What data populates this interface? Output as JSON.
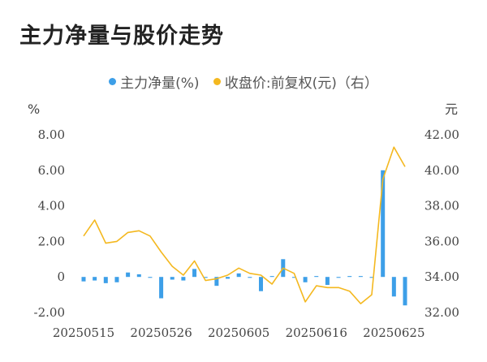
{
  "page": {
    "title": "主力净量与股价走势"
  },
  "chart_data": {
    "type": "bar",
    "title": "",
    "left_unit": "%",
    "right_unit": "元",
    "grid": false,
    "legend_position": "top-center",
    "x_tick_labels": [
      "20250515",
      "20250526",
      "20250605",
      "20250616",
      "20250625"
    ],
    "x_tick_indices": [
      0,
      7,
      14,
      21,
      28
    ],
    "y_left": {
      "min": -2,
      "max": 8,
      "ticks": [
        "-2.00",
        "0",
        "2.00",
        "4.00",
        "6.00",
        "8.00"
      ],
      "tick_values": [
        -2,
        0,
        2,
        4,
        6,
        8
      ]
    },
    "y_right": {
      "min": 32,
      "max": 42,
      "ticks": [
        "32.00",
        "34.00",
        "36.00",
        "38.00",
        "40.00",
        "42.00"
      ],
      "tick_values": [
        32,
        34,
        36,
        38,
        40,
        42
      ]
    },
    "series": [
      {
        "name": "主力净量(%)",
        "type": "bar",
        "axis": "left",
        "color": "#3d9fe8",
        "values": [
          -0.25,
          -0.2,
          -0.35,
          -0.3,
          0.25,
          0.15,
          -0.05,
          -1.2,
          -0.15,
          -0.2,
          0.45,
          -0.05,
          -0.5,
          -0.1,
          0.2,
          -0.05,
          -0.8,
          0.05,
          1.0,
          -0.05,
          -0.3,
          0.05,
          -0.45,
          -0.05,
          0.05,
          0.05,
          -0.05,
          6.0,
          -1.1,
          -1.6
        ]
      },
      {
        "name": "收盘价:前复权(元)（右）",
        "type": "line",
        "axis": "right",
        "color": "#f4b81f",
        "values": [
          36.3,
          37.2,
          35.9,
          36.0,
          36.5,
          36.6,
          36.3,
          35.4,
          34.6,
          34.1,
          34.9,
          33.8,
          33.9,
          34.1,
          34.5,
          34.2,
          34.1,
          33.6,
          34.5,
          34.2,
          32.6,
          33.5,
          33.4,
          33.4,
          33.2,
          32.5,
          33.0,
          39.5,
          41.3,
          40.2
        ]
      }
    ]
  }
}
